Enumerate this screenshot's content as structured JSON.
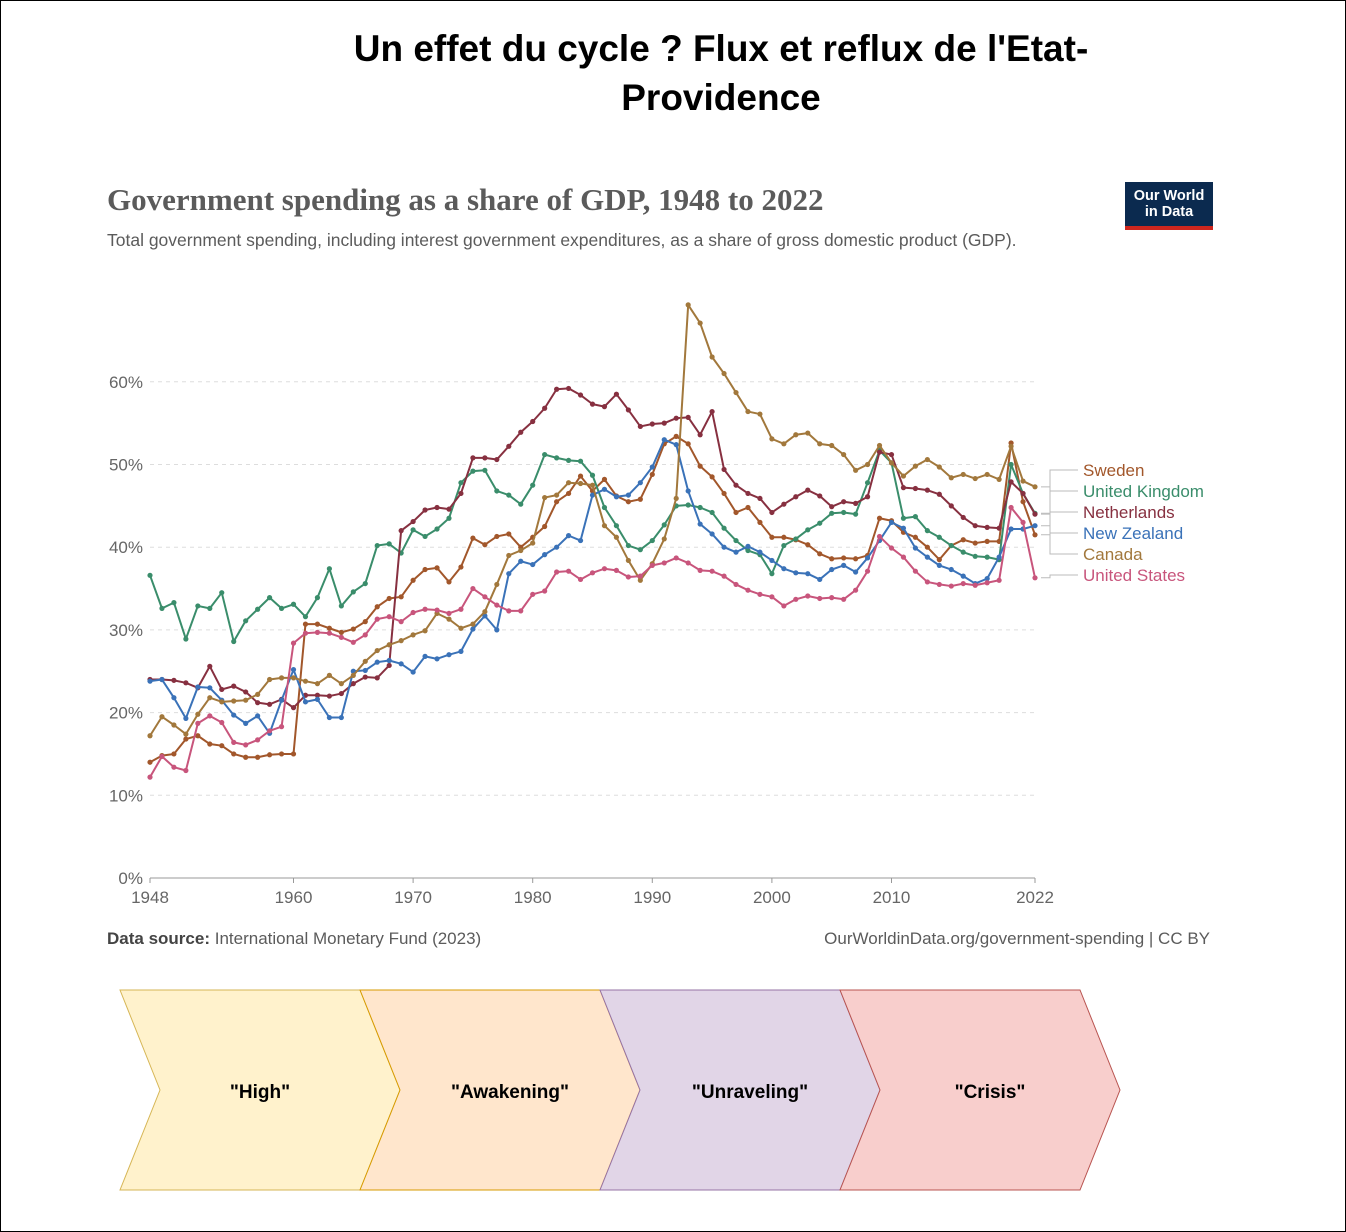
{
  "slide_title": "Un effet du cycle ? Flux et reflux de l'Etat-Providence",
  "logo": {
    "line1": "Our World",
    "line2": "in Data"
  },
  "source": {
    "label": "Data source:",
    "text": "International Monetary Fund (2023)",
    "url": "OurWorldinData.org/government-spending | CC BY"
  },
  "colors": {
    "sweden": "#a2572b",
    "united_kingdom": "#3a8d6b",
    "netherlands": "#873040",
    "new_zealand": "#3a72b8",
    "canada": "#a2783c",
    "united_states": "#c8557c",
    "grid": "#dddddd",
    "axis": "#666666"
  },
  "chart_data": {
    "type": "line",
    "title": "Government spending as a share of GDP, 1948 to 2022",
    "subtitle": "Total government spending, including interest government expenditures, as a share of gross domestic product (GDP).",
    "xlabel": "",
    "ylabel": "",
    "xlim": [
      1948,
      2022
    ],
    "ylim": [
      0,
      70
    ],
    "x_ticks": [
      1948,
      1960,
      1970,
      1980,
      1990,
      2000,
      2010,
      2022
    ],
    "y_ticks": [
      0,
      10,
      20,
      30,
      40,
      50,
      60
    ],
    "y_tick_labels": [
      "0%",
      "10%",
      "20%",
      "30%",
      "40%",
      "50%",
      "60%"
    ],
    "grid": true,
    "legend": "right, labels at line ends",
    "x": [
      1948,
      1949,
      1950,
      1951,
      1952,
      1953,
      1954,
      1955,
      1956,
      1957,
      1958,
      1959,
      1960,
      1961,
      1962,
      1963,
      1964,
      1965,
      1966,
      1967,
      1968,
      1969,
      1970,
      1971,
      1972,
      1973,
      1974,
      1975,
      1976,
      1977,
      1978,
      1979,
      1980,
      1981,
      1982,
      1983,
      1984,
      1985,
      1986,
      1987,
      1988,
      1989,
      1990,
      1991,
      1992,
      1993,
      1994,
      1995,
      1996,
      1997,
      1998,
      1999,
      2000,
      2001,
      2002,
      2003,
      2004,
      2005,
      2006,
      2007,
      2008,
      2009,
      2010,
      2011,
      2012,
      2013,
      2014,
      2015,
      2016,
      2017,
      2018,
      2019,
      2020,
      2021,
      2022
    ],
    "series": [
      {
        "name": "Sweden",
        "color": "#a2572b",
        "values": [
          14.0,
          14.8,
          15.0,
          16.8,
          17.2,
          16.2,
          16.0,
          15.0,
          14.6,
          14.6,
          14.9,
          15.0,
          15.0,
          30.7,
          30.7,
          30.2,
          29.7,
          30.1,
          31.0,
          32.8,
          33.8,
          34.0,
          36.0,
          37.3,
          37.5,
          35.8,
          37.6,
          41.1,
          40.3,
          41.3,
          41.6,
          40.0,
          41.2,
          42.5,
          45.5,
          46.5,
          48.6,
          46.8,
          48.2,
          46.2,
          45.5,
          45.8,
          48.8,
          52.5,
          53.4,
          52.5,
          49.8,
          48.5,
          46.5,
          44.2,
          44.8,
          43.0,
          41.2,
          41.2,
          40.9,
          40.3,
          39.2,
          38.6,
          38.7,
          38.6,
          39.0,
          43.5,
          43.2,
          41.8,
          41.2,
          40.0,
          38.5,
          40.2,
          40.9,
          40.5,
          40.7,
          40.7,
          52.6,
          45.5,
          41.5
        ]
      },
      {
        "name": "United Kingdom",
        "color": "#3a8d6b",
        "values": [
          36.6,
          32.6,
          33.3,
          28.9,
          32.9,
          32.6,
          34.5,
          28.6,
          31.1,
          32.5,
          33.9,
          32.6,
          33.1,
          31.6,
          33.9,
          37.4,
          32.9,
          34.6,
          35.6,
          40.2,
          40.4,
          39.3,
          42.1,
          41.3,
          42.2,
          43.5,
          47.8,
          49.2,
          49.3,
          46.8,
          46.3,
          45.2,
          47.5,
          51.2,
          50.8,
          50.5,
          50.4,
          48.7,
          44.8,
          42.6,
          40.2,
          39.7,
          40.8,
          42.7,
          45.0,
          45.1,
          44.8,
          44.2,
          42.3,
          40.8,
          39.6,
          39.1,
          36.8,
          40.2,
          41.0,
          42.1,
          42.9,
          44.1,
          44.2,
          44.0,
          47.8,
          51.7,
          50.2,
          43.5,
          43.7,
          42.0,
          41.2,
          40.2,
          39.4,
          38.9,
          38.8,
          38.5,
          50.0,
          46.5,
          44.1
        ]
      },
      {
        "name": "Netherlands",
        "color": "#873040",
        "values": [
          24.0,
          24.0,
          23.9,
          23.6,
          23.0,
          25.6,
          22.8,
          23.2,
          22.5,
          21.2,
          21.0,
          21.6,
          20.6,
          22.1,
          22.1,
          22.0,
          22.3,
          23.5,
          24.3,
          24.2,
          25.7,
          42.0,
          43.1,
          44.5,
          44.8,
          44.6,
          46.5,
          50.8,
          50.8,
          50.6,
          52.2,
          53.9,
          55.2,
          56.8,
          59.1,
          59.2,
          58.4,
          57.3,
          57.0,
          58.5,
          56.6,
          54.6,
          54.9,
          55.0,
          55.6,
          55.7,
          53.6,
          56.4,
          49.4,
          47.5,
          46.5,
          45.9,
          44.2,
          45.2,
          46.1,
          46.9,
          46.2,
          44.9,
          45.5,
          45.3,
          46.1,
          51.5,
          51.2,
          47.2,
          47.1,
          46.9,
          46.4,
          45.0,
          43.6,
          42.6,
          42.4,
          42.3,
          47.9,
          46.5,
          44.0
        ]
      },
      {
        "name": "New Zealand",
        "color": "#3a72b8",
        "values": [
          23.8,
          24.0,
          21.8,
          19.3,
          23.1,
          23.0,
          21.5,
          19.7,
          18.7,
          19.6,
          17.5,
          21.5,
          25.2,
          21.3,
          21.6,
          19.4,
          19.4,
          25.0,
          25.1,
          26.1,
          26.3,
          25.9,
          24.9,
          26.8,
          26.5,
          27.0,
          27.4,
          30.1,
          31.7,
          30.0,
          36.8,
          38.3,
          37.9,
          39.1,
          40.0,
          41.4,
          40.8,
          46.3,
          47.0,
          46.1,
          46.3,
          47.8,
          49.7,
          53.0,
          52.4,
          46.8,
          42.8,
          41.6,
          40.0,
          39.4,
          40.1,
          39.4,
          38.4,
          37.4,
          36.9,
          36.8,
          36.1,
          37.3,
          37.8,
          37.0,
          38.7,
          40.8,
          43.0,
          42.3,
          39.9,
          38.8,
          37.8,
          37.3,
          36.5,
          35.6,
          36.2,
          38.8,
          42.2,
          42.2,
          42.6
        ]
      },
      {
        "name": "Canada",
        "color": "#a2783c",
        "values": [
          17.2,
          19.5,
          18.5,
          17.4,
          19.8,
          21.8,
          21.3,
          21.4,
          21.5,
          22.2,
          24.0,
          24.2,
          24.2,
          23.8,
          23.5,
          24.5,
          23.5,
          24.5,
          26.2,
          27.5,
          28.2,
          28.7,
          29.4,
          29.9,
          32.0,
          31.3,
          30.2,
          30.7,
          32.2,
          35.5,
          39.0,
          39.6,
          40.5,
          46.0,
          46.3,
          47.8,
          47.7,
          47.5,
          42.6,
          41.2,
          38.4,
          36.0,
          38.0,
          41.0,
          45.9,
          69.3,
          67.1,
          63.0,
          61.0,
          58.7,
          56.4,
          56.1,
          53.1,
          52.5,
          53.6,
          53.8,
          52.5,
          52.3,
          51.2,
          49.3,
          50.0,
          52.3,
          50.2,
          48.6,
          49.8,
          50.6,
          49.7,
          48.4,
          48.8,
          48.3,
          48.8,
          48.2,
          52.2,
          48.0,
          47.3
        ]
      },
      {
        "name": "United States",
        "color": "#c8557c",
        "values": [
          12.2,
          14.7,
          13.4,
          13.0,
          18.7,
          19.6,
          18.8,
          16.4,
          16.1,
          16.7,
          17.8,
          18.3,
          28.4,
          29.6,
          29.7,
          29.6,
          29.1,
          28.5,
          29.4,
          31.3,
          31.6,
          31.0,
          32.1,
          32.5,
          32.4,
          32.0,
          32.5,
          35.0,
          34.0,
          33.0,
          32.3,
          32.3,
          34.3,
          34.7,
          37.0,
          37.1,
          36.1,
          36.9,
          37.4,
          37.2,
          36.4,
          36.5,
          37.8,
          38.1,
          38.7,
          38.1,
          37.2,
          37.1,
          36.5,
          35.5,
          34.8,
          34.3,
          34.0,
          32.9,
          33.7,
          34.1,
          33.8,
          33.9,
          33.7,
          34.8,
          37.1,
          41.3,
          39.9,
          38.8,
          37.1,
          35.8,
          35.5,
          35.3,
          35.6,
          35.4,
          35.7,
          36.0,
          44.8,
          43.0,
          36.3
        ]
      }
    ]
  },
  "phases": [
    {
      "label": "\"High\"",
      "fill": "#fff2cc",
      "stroke": "#d6b656"
    },
    {
      "label": "\"Awakening\"",
      "fill": "#ffe6cc",
      "stroke": "#d79b00"
    },
    {
      "label": "\"Unraveling\"",
      "fill": "#e1d5e7",
      "stroke": "#9673a6"
    },
    {
      "label": "\"Crisis\"",
      "fill": "#f8cecc",
      "stroke": "#b85450"
    }
  ]
}
